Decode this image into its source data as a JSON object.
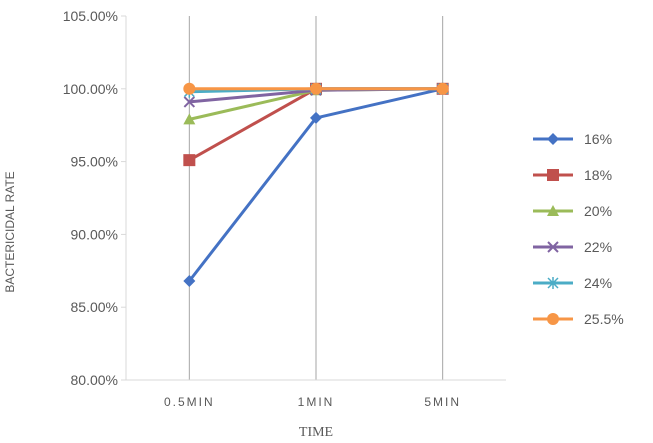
{
  "chart_data": {
    "type": "line",
    "title": "",
    "xlabel": "TIME",
    "ylabel": "BACTERICIDAL RATE",
    "categories": [
      "0.5MIN",
      "1MIN",
      "5MIN"
    ],
    "ylim": [
      80,
      105
    ],
    "yticks": [
      "80.00%",
      "85.00%",
      "90.00%",
      "95.00%",
      "100.00%",
      "105.00%"
    ],
    "ytick_values": [
      80,
      85,
      90,
      95,
      100,
      105
    ],
    "grid": "vertical lines at categories",
    "legend_position": "right",
    "series": [
      {
        "name": "16%",
        "values": [
          86.8,
          98.0,
          100.0
        ],
        "color": "#4472c4",
        "marker": "diamond"
      },
      {
        "name": "18%",
        "values": [
          95.1,
          100.0,
          100.0
        ],
        "color": "#c0504d",
        "marker": "square"
      },
      {
        "name": "20%",
        "values": [
          97.9,
          99.9,
          100.0
        ],
        "color": "#9bbb59",
        "marker": "triangle"
      },
      {
        "name": "22%",
        "values": [
          99.1,
          99.9,
          100.0
        ],
        "color": "#8064a2",
        "marker": "x"
      },
      {
        "name": "24%",
        "values": [
          99.8,
          100.0,
          100.0
        ],
        "color": "#4bacc6",
        "marker": "star"
      },
      {
        "name": "25.5%",
        "values": [
          100.0,
          100.0,
          100.0
        ],
        "color": "#f79646",
        "marker": "circle"
      }
    ]
  }
}
